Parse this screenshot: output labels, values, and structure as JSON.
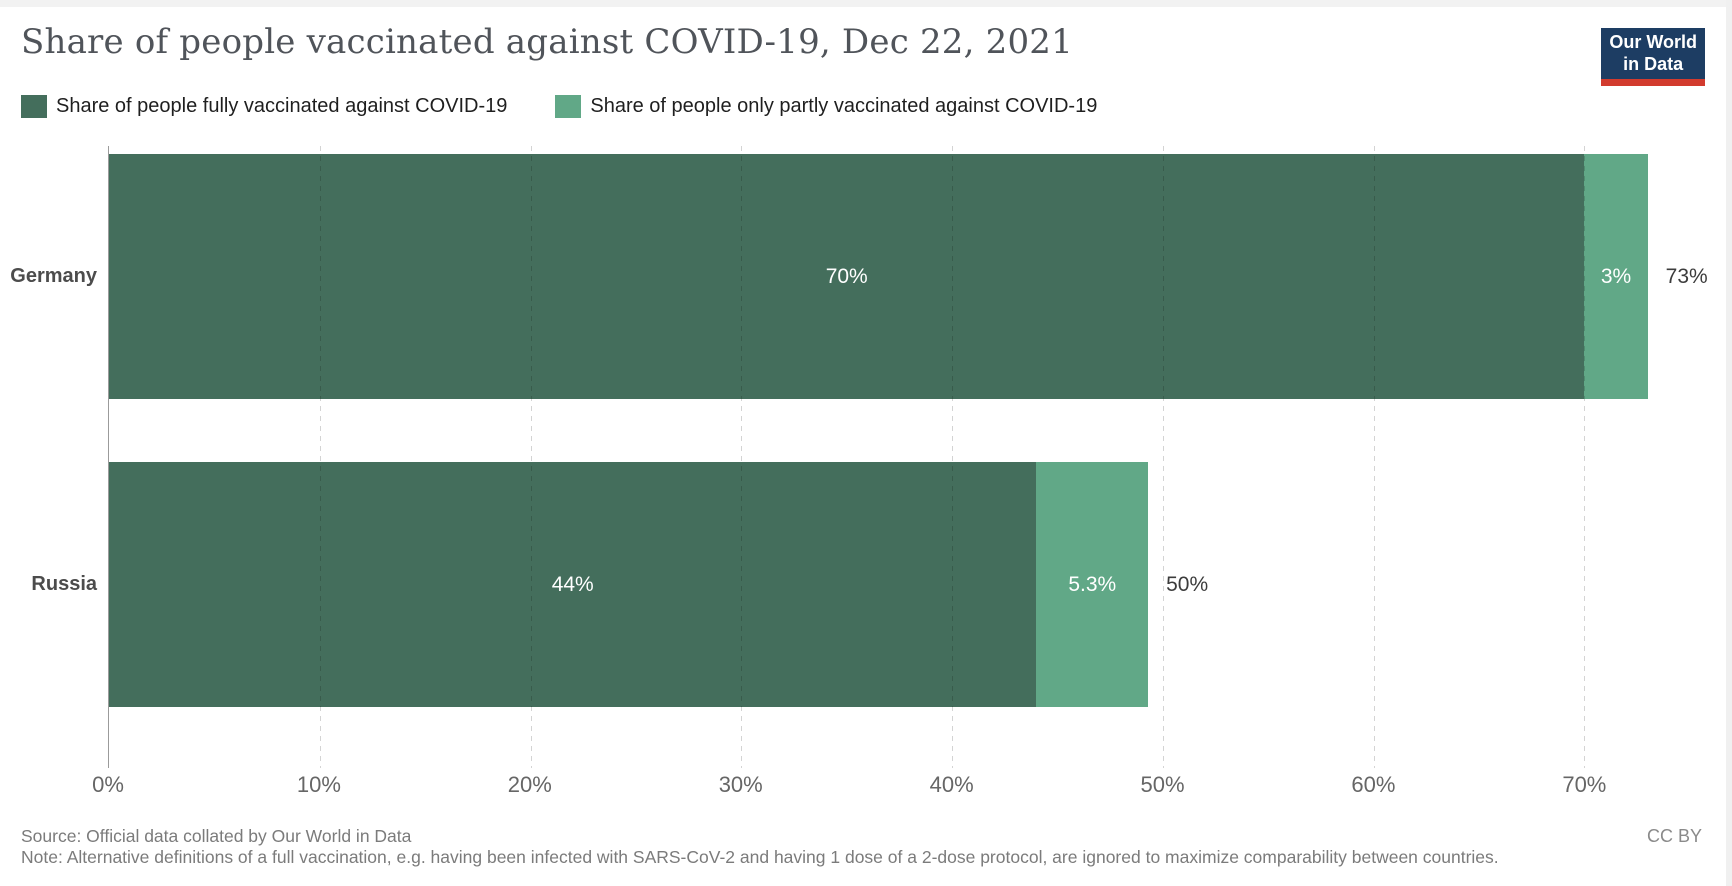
{
  "header": {
    "title": "Share of people vaccinated against COVID-19, Dec 22, 2021"
  },
  "logo": {
    "line1": "Our World",
    "line2": "in Data",
    "background": "#1d3d63",
    "underline": "#d23b2e"
  },
  "chart_data": {
    "type": "bar",
    "orientation": "horizontal",
    "stacked": true,
    "date": "Dec 22, 2021",
    "categories": [
      "Germany",
      "Russia"
    ],
    "series": [
      {
        "key": "fully",
        "name": "Share of people fully vaccinated against COVID-19",
        "color": "#446e5c",
        "values": [
          70,
          44
        ]
      },
      {
        "key": "partly",
        "name": "Share of people only partly vaccinated against COVID-19",
        "color": "#61a887",
        "values": [
          3,
          5.3
        ]
      }
    ],
    "segment_labels": [
      [
        "70%",
        "3%"
      ],
      [
        "44%",
        "5.3%"
      ]
    ],
    "total_labels": [
      "73%",
      "50%"
    ],
    "xlim": [
      0,
      77
    ],
    "xticks": [
      {
        "value": 0,
        "label": "0%"
      },
      {
        "value": 10,
        "label": "10%"
      },
      {
        "value": 20,
        "label": "20%"
      },
      {
        "value": 30,
        "label": "30%"
      },
      {
        "value": 40,
        "label": "40%"
      },
      {
        "value": 50,
        "label": "50%"
      },
      {
        "value": 60,
        "label": "60%"
      },
      {
        "value": 70,
        "label": "70%"
      }
    ],
    "grid": "vertical-dashed",
    "legend_position": "top-left"
  },
  "footer": {
    "source": "Source: Official data collated by Our World in Data",
    "note": "Note: Alternative definitions of a full vaccination, e.g. having been infected with SARS-CoV-2 and having 1 dose of a 2-dose protocol, are ignored to maximize comparability between countries.",
    "license": "CC BY"
  }
}
